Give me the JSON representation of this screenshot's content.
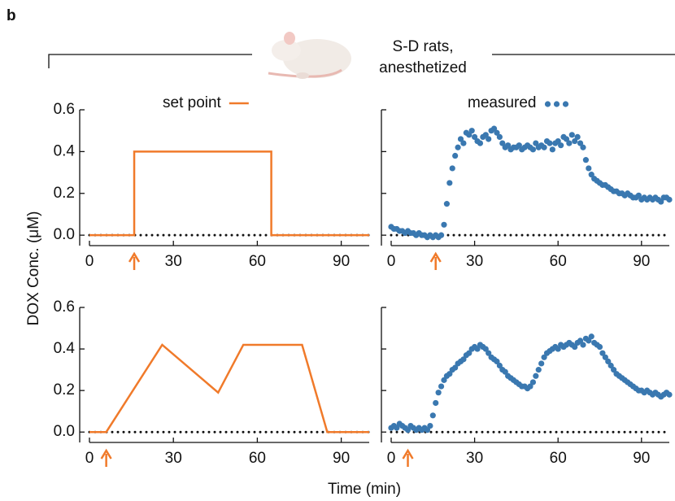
{
  "label": "b",
  "header": [
    "S-D rats,",
    "anesthetized"
  ],
  "ylabel": "DOX Conc. (μM)",
  "xlabel": "Time (min)",
  "chart_data": [
    {
      "type": "line",
      "x": [
        0,
        16,
        16,
        65,
        65,
        100
      ],
      "series": [
        {
          "name": "set point",
          "color": "#f07a2a",
          "values": [
            0,
            0,
            0.4,
            0.4,
            0,
            0
          ]
        }
      ],
      "legend": "top",
      "xlim": [
        0,
        100
      ],
      "ylim": [
        -0.05,
        0.6
      ],
      "xticks": [
        0,
        30,
        60,
        90
      ],
      "yticks": [
        {
          "value": 0,
          "label": "0.0"
        },
        0.2,
        0.4,
        0.6
      ],
      "ytick_labels": true,
      "zero_line": true,
      "arrow_x": 16
    },
    {
      "type": "scatter",
      "x": [
        0,
        1,
        2,
        3,
        4,
        5,
        6,
        7,
        8,
        9,
        10,
        11,
        12,
        13,
        14,
        15,
        16,
        17,
        18,
        19,
        20,
        21,
        22,
        23,
        24,
        25,
        26,
        27,
        28,
        29,
        30,
        31,
        32,
        33,
        34,
        35,
        36,
        37,
        38,
        39,
        40,
        41,
        42,
        43,
        44,
        45,
        46,
        47,
        48,
        49,
        50,
        51,
        52,
        53,
        54,
        55,
        56,
        57,
        58,
        59,
        60,
        61,
        62,
        63,
        64,
        65,
        66,
        67,
        68,
        69,
        70,
        71,
        72,
        73,
        74,
        75,
        76,
        77,
        78,
        79,
        80,
        81,
        82,
        83,
        84,
        85,
        86,
        87,
        88,
        89,
        90,
        91,
        92,
        93,
        94,
        95,
        96,
        97,
        98,
        99,
        100
      ],
      "series": [
        {
          "name": "measured",
          "color": "#3a78b0",
          "values": [
            0.04,
            0.03,
            0.03,
            0.02,
            0.02,
            0.01,
            0.02,
            0.01,
            0.01,
            0.0,
            0.01,
            0.0,
            0.0,
            -0.01,
            0.0,
            -0.01,
            0.0,
            -0.01,
            0.0,
            0.05,
            0.15,
            0.25,
            0.32,
            0.38,
            0.42,
            0.46,
            0.44,
            0.49,
            0.48,
            0.5,
            0.47,
            0.45,
            0.44,
            0.47,
            0.48,
            0.46,
            0.5,
            0.51,
            0.49,
            0.47,
            0.44,
            0.42,
            0.43,
            0.41,
            0.42,
            0.42,
            0.43,
            0.41,
            0.42,
            0.43,
            0.42,
            0.41,
            0.44,
            0.42,
            0.43,
            0.42,
            0.45,
            0.44,
            0.41,
            0.44,
            0.45,
            0.43,
            0.47,
            0.46,
            0.44,
            0.48,
            0.45,
            0.47,
            0.44,
            0.42,
            0.36,
            0.32,
            0.29,
            0.27,
            0.26,
            0.25,
            0.24,
            0.24,
            0.23,
            0.22,
            0.21,
            0.21,
            0.2,
            0.2,
            0.19,
            0.2,
            0.19,
            0.18,
            0.18,
            0.19,
            0.17,
            0.18,
            0.17,
            0.18,
            0.17,
            0.18,
            0.17,
            0.16,
            0.18,
            0.18,
            0.17
          ]
        }
      ],
      "legend": "top",
      "xlim": [
        0,
        100
      ],
      "ylim": [
        -0.05,
        0.6
      ],
      "xticks": [
        0,
        30,
        60,
        90
      ],
      "yticks": [
        0,
        0.2,
        0.4,
        0.6
      ],
      "ytick_labels": false,
      "zero_line": true,
      "arrow_x": 16
    },
    {
      "type": "line",
      "x": [
        0,
        6,
        26,
        46,
        55,
        76,
        85,
        100
      ],
      "series": [
        {
          "color": "#f07a2a",
          "values": [
            0,
            0,
            0.42,
            0.19,
            0.42,
            0.42,
            0,
            0
          ]
        }
      ],
      "xlim": [
        0,
        100
      ],
      "ylim": [
        -0.05,
        0.6
      ],
      "xticks": [
        0,
        30,
        60,
        90
      ],
      "yticks": [
        {
          "value": 0,
          "label": "0.0"
        },
        0.2,
        0.4,
        0.6
      ],
      "ytick_labels": true,
      "zero_line": true,
      "arrow_x": 6
    },
    {
      "type": "scatter",
      "x": [
        0,
        1,
        2,
        3,
        4,
        5,
        6,
        7,
        8,
        9,
        10,
        11,
        12,
        13,
        14,
        15,
        16,
        17,
        18,
        19,
        20,
        21,
        22,
        23,
        24,
        25,
        26,
        27,
        28,
        29,
        30,
        31,
        32,
        33,
        34,
        35,
        36,
        37,
        38,
        39,
        40,
        41,
        42,
        43,
        44,
        45,
        46,
        47,
        48,
        49,
        50,
        51,
        52,
        53,
        54,
        55,
        56,
        57,
        58,
        59,
        60,
        61,
        62,
        63,
        64,
        65,
        66,
        67,
        68,
        69,
        70,
        71,
        72,
        73,
        74,
        75,
        76,
        77,
        78,
        79,
        80,
        81,
        82,
        83,
        84,
        85,
        86,
        87,
        88,
        89,
        90,
        91,
        92,
        93,
        94,
        95,
        96,
        97,
        98,
        99,
        100
      ],
      "series": [
        {
          "color": "#3a78b0",
          "values": [
            0.02,
            0.03,
            0.02,
            0.04,
            0.03,
            0.02,
            0.01,
            0.03,
            0.02,
            0.01,
            0.02,
            0.01,
            0.02,
            0.01,
            0.03,
            0.08,
            0.14,
            0.19,
            0.22,
            0.25,
            0.27,
            0.28,
            0.3,
            0.31,
            0.33,
            0.34,
            0.35,
            0.37,
            0.38,
            0.4,
            0.41,
            0.4,
            0.42,
            0.41,
            0.4,
            0.38,
            0.36,
            0.35,
            0.34,
            0.32,
            0.3,
            0.29,
            0.27,
            0.26,
            0.25,
            0.24,
            0.23,
            0.22,
            0.22,
            0.21,
            0.22,
            0.24,
            0.27,
            0.3,
            0.33,
            0.36,
            0.38,
            0.39,
            0.4,
            0.41,
            0.4,
            0.42,
            0.41,
            0.42,
            0.43,
            0.42,
            0.41,
            0.43,
            0.44,
            0.42,
            0.45,
            0.44,
            0.46,
            0.43,
            0.42,
            0.41,
            0.38,
            0.36,
            0.34,
            0.32,
            0.3,
            0.28,
            0.27,
            0.26,
            0.25,
            0.24,
            0.23,
            0.22,
            0.21,
            0.2,
            0.2,
            0.19,
            0.2,
            0.19,
            0.18,
            0.19,
            0.18,
            0.17,
            0.18,
            0.19,
            0.18
          ]
        }
      ],
      "xlim": [
        0,
        100
      ],
      "ylim": [
        -0.05,
        0.6
      ],
      "xticks": [
        0,
        30,
        60,
        90
      ],
      "yticks": [
        0,
        0.2,
        0.4,
        0.6
      ],
      "ytick_labels": false,
      "zero_line": true,
      "arrow_x": 6
    }
  ]
}
